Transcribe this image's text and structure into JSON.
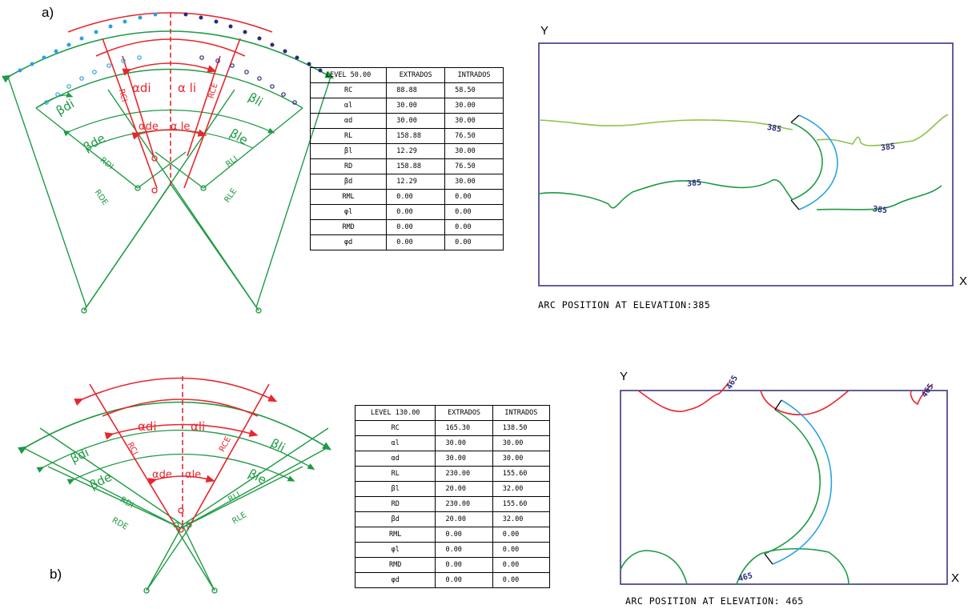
{
  "panel_a": {
    "label": "a)",
    "diagram_labels": {
      "alpha_di": "αdi",
      "alpha_li": "α li",
      "alpha_de": "αde",
      "alpha_le": "α le",
      "beta_di": "βdi",
      "beta_li": "βli",
      "beta_de": "βde",
      "beta_le": "βle",
      "rci": "RCI",
      "rce": "RCE",
      "rdi": "RDI",
      "rli": "RLI",
      "rde": "RDE",
      "rle": "RLE"
    },
    "table": {
      "headers": [
        "LEVEL 50.00",
        "EXTRADOS",
        "INTRADOS"
      ],
      "rows": [
        [
          "RC",
          "88.88",
          "58.50"
        ],
        [
          "αl",
          "30.00",
          "30.00"
        ],
        [
          "αd",
          "30.00",
          "30.00"
        ],
        [
          "RL",
          "158.88",
          "76.50"
        ],
        [
          "βl",
          "12.29",
          "30.00"
        ],
        [
          "RD",
          "158.88",
          "76.50"
        ],
        [
          "βd",
          "12.29",
          "30.00"
        ],
        [
          "RML",
          "0.00",
          "0.00"
        ],
        [
          "φl",
          "0.00",
          "0.00"
        ],
        [
          "RMD",
          "0.00",
          "0.00"
        ],
        [
          "φd",
          "0.00",
          "0.00"
        ]
      ]
    },
    "plan": {
      "y_axis": "Y",
      "x_axis": "X",
      "contour_label_1": "385",
      "contour_label_2": "385",
      "contour_label_3": "385",
      "contour_label_4": "385",
      "caption": "ARC POSITION AT ELEVATION:385"
    }
  },
  "panel_b": {
    "label": "b)",
    "diagram_labels": {
      "alpha_di": "αdi",
      "alpha_li": "αli",
      "alpha_de": "αde",
      "alpha_le": "αle",
      "beta_di": "βdi",
      "beta_li": "βli",
      "beta_de": "βde",
      "beta_le": "βle",
      "rci": "RCI",
      "rce": "RCE",
      "rdi": "RDI",
      "rli": "RLI",
      "rde": "RDE",
      "rle": "RLE"
    },
    "table": {
      "headers": [
        "LEVEL 130.00",
        "EXTRADOS",
        "INTRADOS"
      ],
      "rows": [
        [
          "RC",
          "165.30",
          "138.50"
        ],
        [
          "αl",
          "30.00",
          "30.00"
        ],
        [
          "αd",
          "30.00",
          "30.00"
        ],
        [
          "RL",
          "230.00",
          "155.60"
        ],
        [
          "βl",
          "20.00",
          "32.00"
        ],
        [
          "RD",
          "230.00",
          "155.60"
        ],
        [
          "βd",
          "20.00",
          "32.00"
        ],
        [
          "RML",
          "0.00",
          "0.00"
        ],
        [
          "φl",
          "0.00",
          "0.00"
        ],
        [
          "RMD",
          "0.00",
          "0.00"
        ],
        [
          "φd",
          "0.00",
          "0.00"
        ]
      ]
    },
    "plan": {
      "y_axis": "Y",
      "x_axis": "X",
      "contour_label_1": "465",
      "contour_label_2": "465",
      "contour_label_3": "465",
      "caption": "ARC POSITION AT ELEVATION: 465"
    }
  },
  "colors": {
    "red": "#e8262d",
    "green": "#1e9a44",
    "light_green": "#8bc34a",
    "blue": "#29a3e0",
    "navy": "#2b2a7c"
  }
}
